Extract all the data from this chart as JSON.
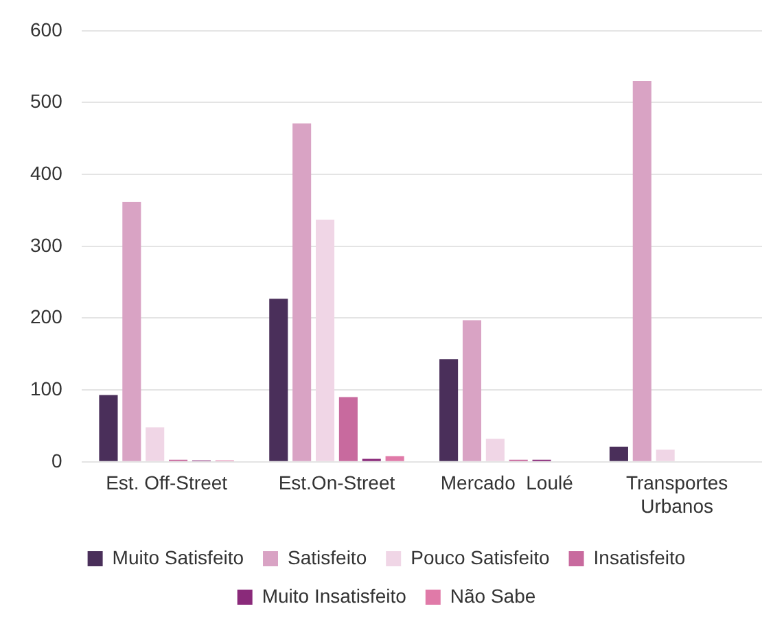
{
  "chart_data": {
    "type": "bar",
    "categories": [
      "Est. Off-Street",
      "Est.On-Street",
      "Mercado  Loulé",
      "Transportes Urbanos"
    ],
    "series": [
      {
        "name": "Muito Satisfeito",
        "color": "#4a2f5a",
        "values": [
          93,
          227,
          143,
          21
        ]
      },
      {
        "name": "Satisfeito",
        "color": "#d9a3c4",
        "values": [
          362,
          471,
          197,
          530
        ]
      },
      {
        "name": "Pouco Satisfeito",
        "color": "#f0d6e6",
        "values": [
          48,
          337,
          32,
          17
        ]
      },
      {
        "name": "Insatisfeito",
        "color": "#c86a9e",
        "values": [
          3,
          90,
          3,
          0
        ]
      },
      {
        "name": "Muito Insatisfeito",
        "color": "#8a2a7a",
        "values": [
          2,
          4,
          3,
          0
        ]
      },
      {
        "name": "Não Sabe",
        "color": "#e07aa8",
        "values": [
          2,
          8,
          null,
          0
        ]
      }
    ],
    "ylim": [
      0,
      600
    ],
    "yticks": [
      0,
      100,
      200,
      300,
      400,
      500,
      600
    ],
    "grid": "y",
    "legend": "bottom"
  }
}
